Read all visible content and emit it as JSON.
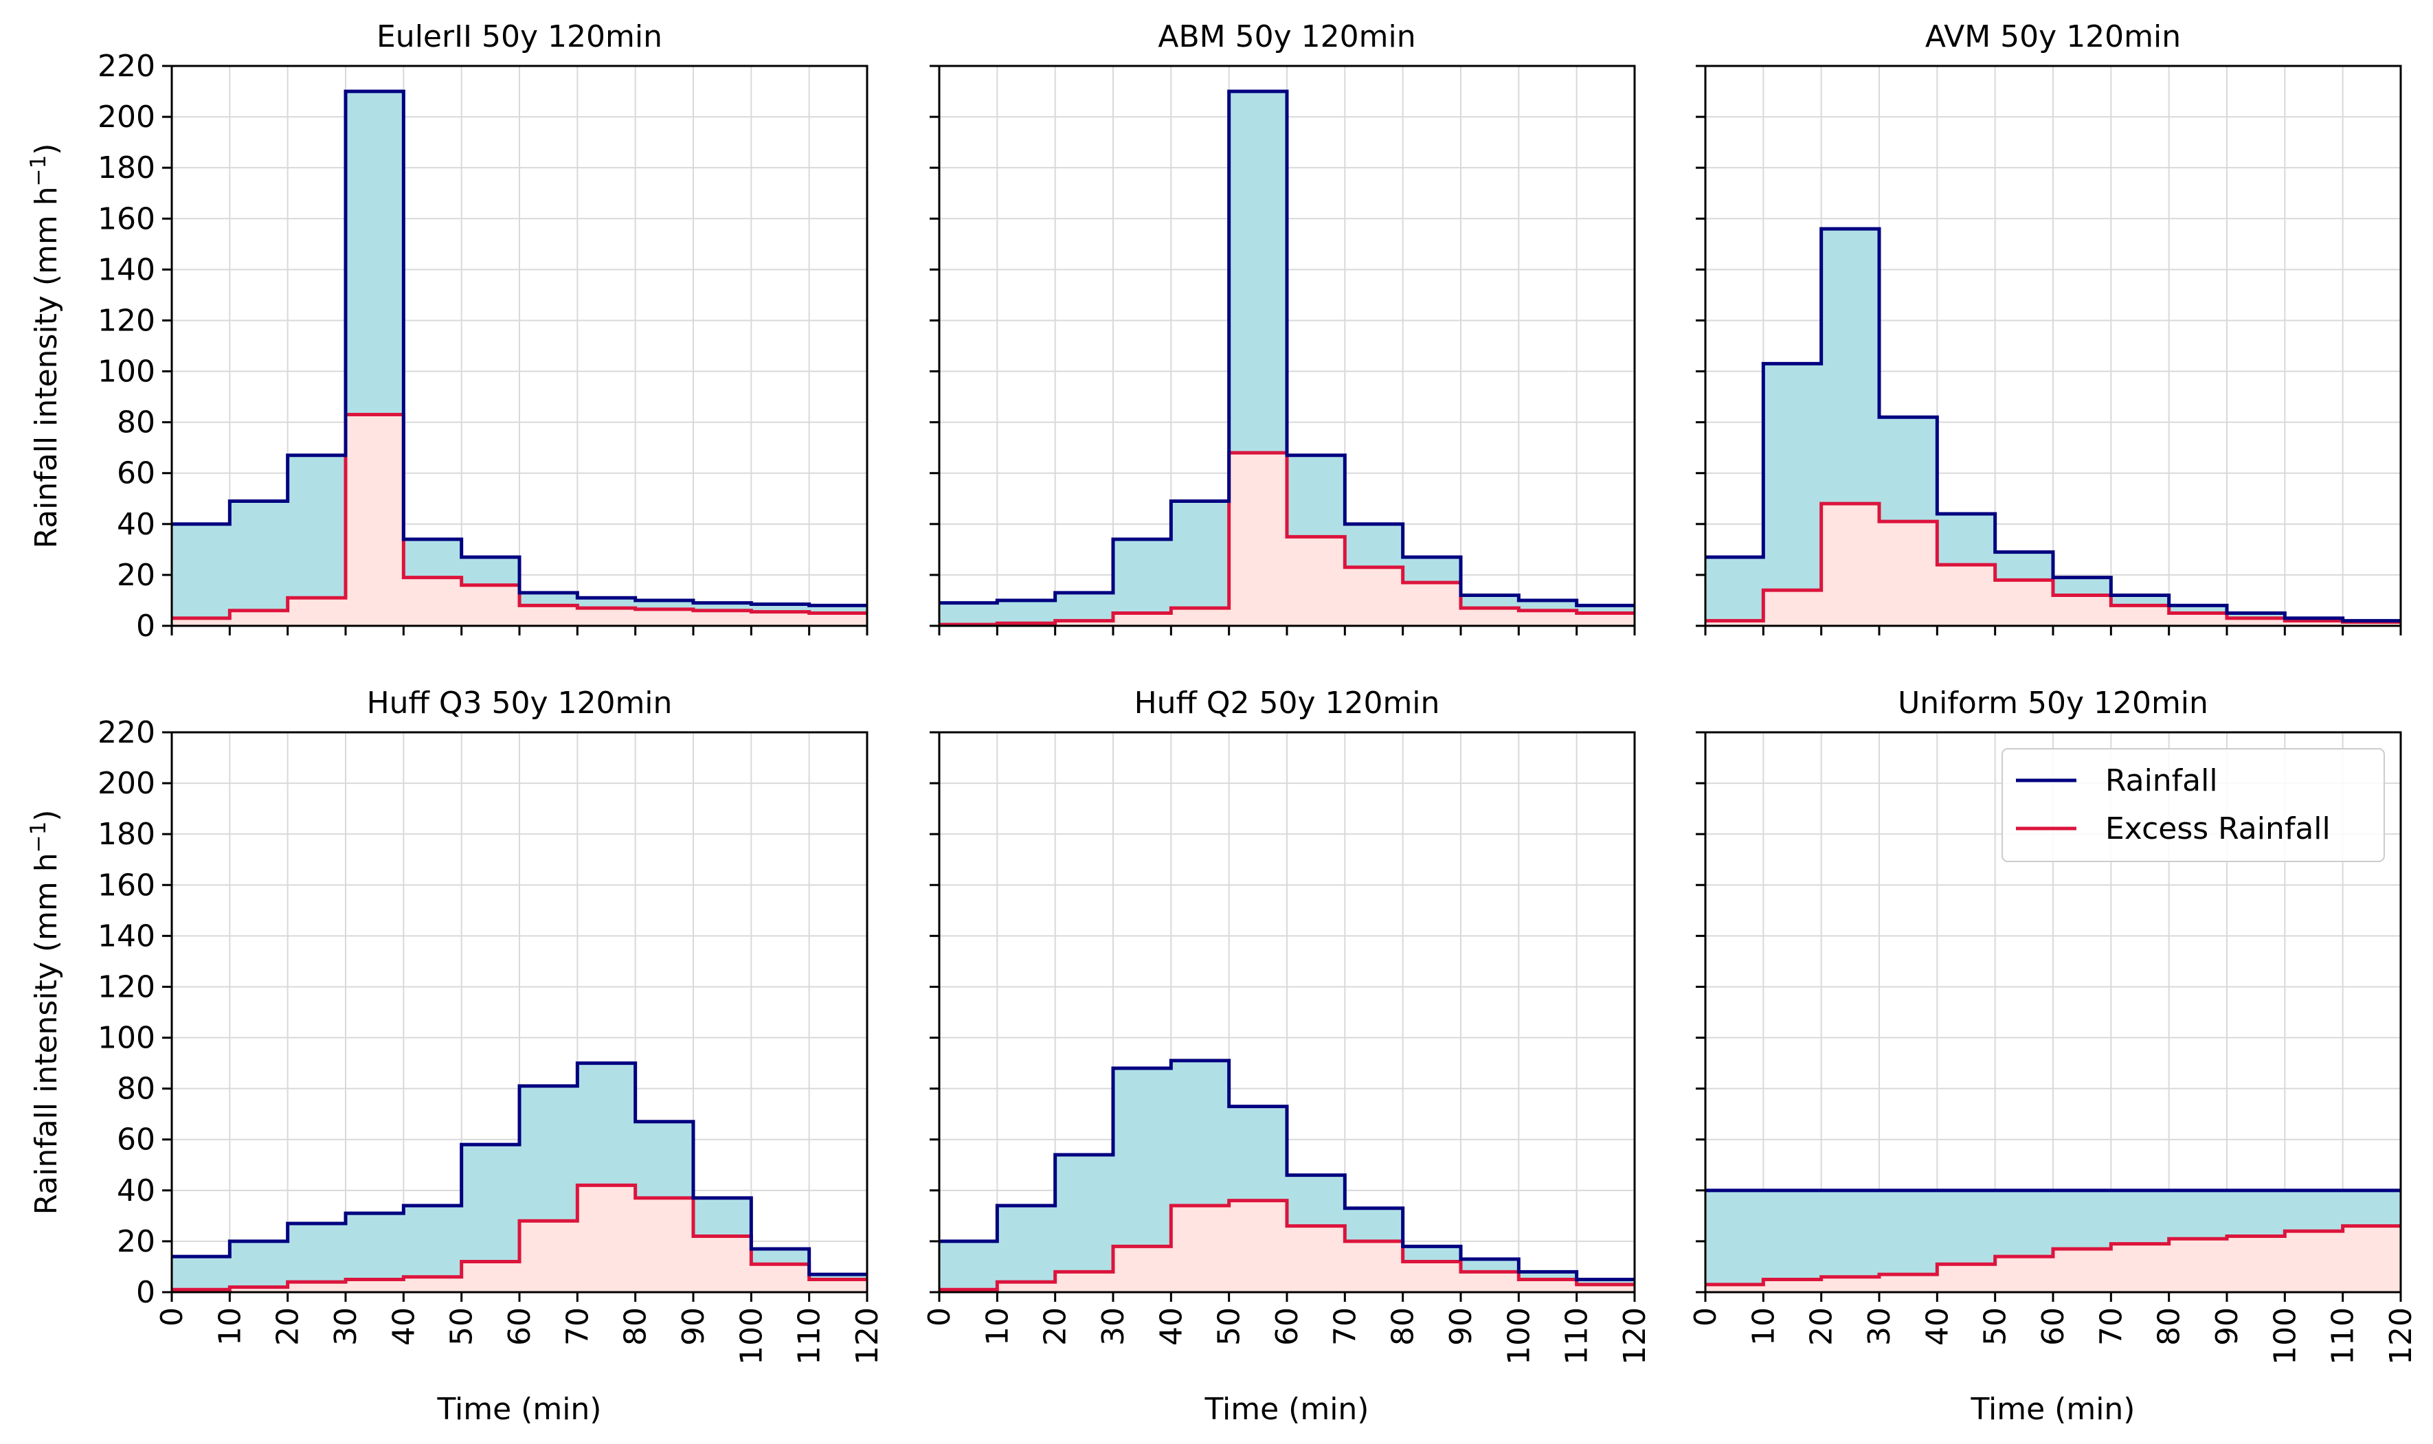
{
  "figure": {
    "ylabel": "Rainfall intensity (mm h",
    "ylabel_sup": "−1",
    "ylabel_end": ")",
    "xlabel": "Time (min)",
    "xlim": [
      0,
      120
    ],
    "ylim": [
      0,
      220
    ],
    "x_ticks": [
      0,
      10,
      20,
      30,
      40,
      50,
      60,
      70,
      80,
      90,
      100,
      110,
      120
    ],
    "y_ticks": [
      0,
      20,
      40,
      60,
      80,
      100,
      120,
      140,
      160,
      180,
      200,
      220
    ],
    "colors": {
      "rainfall_line": "#000080",
      "rainfall_fill": "#b0e0e6",
      "excess_line": "#dc143c",
      "excess_fill": "#ffe4e1",
      "grid": "#d9d9d9"
    }
  },
  "legend": {
    "placement": "top-right",
    "entries": [
      {
        "label": "Rainfall",
        "color": "#000080"
      },
      {
        "label": "Excess Rainfall",
        "color": "#dc143c"
      }
    ]
  },
  "chart_data": [
    {
      "type": "area",
      "title": "EulerII 50y 120min",
      "xlabel": "",
      "ylabel": "Rainfall intensity (mm h−1)",
      "bin_edges": [
        0,
        10,
        20,
        30,
        40,
        50,
        60,
        70,
        80,
        90,
        100,
        110,
        120
      ],
      "series": [
        {
          "name": "Rainfall",
          "values": [
            40,
            49,
            67,
            210,
            34,
            27,
            13,
            11,
            10,
            9,
            8.5,
            8
          ]
        },
        {
          "name": "Excess Rainfall",
          "values": [
            3,
            6,
            11,
            83,
            19,
            16,
            8,
            7,
            6.5,
            6,
            5.5,
            5
          ]
        }
      ]
    },
    {
      "type": "area",
      "title": "ABM 50y 120min",
      "xlabel": "",
      "ylabel": "",
      "bin_edges": [
        0,
        10,
        20,
        30,
        40,
        50,
        60,
        70,
        80,
        90,
        100,
        110,
        120
      ],
      "series": [
        {
          "name": "Rainfall",
          "values": [
            9,
            10,
            13,
            34,
            49,
            210,
            67,
            40,
            27,
            12,
            10,
            8
          ]
        },
        {
          "name": "Excess Rainfall",
          "values": [
            0.5,
            1,
            2,
            5,
            7,
            68,
            35,
            23,
            17,
            7,
            6,
            5
          ]
        }
      ]
    },
    {
      "type": "area",
      "title": "AVM 50y 120min",
      "xlabel": "",
      "ylabel": "",
      "bin_edges": [
        0,
        10,
        20,
        30,
        40,
        50,
        60,
        70,
        80,
        90,
        100,
        110,
        120
      ],
      "series": [
        {
          "name": "Rainfall",
          "values": [
            27,
            103,
            156,
            82,
            44,
            29,
            19,
            12,
            8,
            5,
            3,
            2
          ]
        },
        {
          "name": "Excess Rainfall",
          "values": [
            2,
            14,
            48,
            41,
            24,
            18,
            12,
            8,
            5,
            3,
            2,
            1.5
          ]
        }
      ]
    },
    {
      "type": "area",
      "title": "Huff Q3 50y 120min",
      "xlabel": "Time (min)",
      "ylabel": "Rainfall intensity (mm h−1)",
      "bin_edges": [
        0,
        10,
        20,
        30,
        40,
        50,
        60,
        70,
        80,
        90,
        100,
        110,
        120
      ],
      "series": [
        {
          "name": "Rainfall",
          "values": [
            14,
            20,
            27,
            31,
            34,
            58,
            81,
            90,
            67,
            37,
            17,
            7
          ]
        },
        {
          "name": "Excess Rainfall",
          "values": [
            1,
            2,
            4,
            5,
            6,
            12,
            28,
            42,
            37,
            22,
            11,
            5
          ]
        }
      ]
    },
    {
      "type": "area",
      "title": "Huff Q2 50y 120min",
      "xlabel": "Time (min)",
      "ylabel": "",
      "bin_edges": [
        0,
        10,
        20,
        30,
        40,
        50,
        60,
        70,
        80,
        90,
        100,
        110,
        120
      ],
      "series": [
        {
          "name": "Rainfall",
          "values": [
            20,
            34,
            54,
            88,
            91,
            73,
            46,
            33,
            18,
            13,
            8,
            5
          ]
        },
        {
          "name": "Excess Rainfall",
          "values": [
            1,
            4,
            8,
            18,
            34,
            36,
            26,
            20,
            12,
            8,
            5,
            3
          ]
        }
      ]
    },
    {
      "type": "area",
      "title": "Uniform 50y 120min",
      "xlabel": "Time (min)",
      "ylabel": "",
      "bin_edges": [
        0,
        10,
        20,
        30,
        40,
        50,
        60,
        70,
        80,
        90,
        100,
        110,
        120
      ],
      "series": [
        {
          "name": "Rainfall",
          "values": [
            40,
            40,
            40,
            40,
            40,
            40,
            40,
            40,
            40,
            40,
            40,
            40
          ]
        },
        {
          "name": "Excess Rainfall",
          "values": [
            3,
            5,
            6,
            7,
            11,
            14,
            17,
            19,
            21,
            22,
            24,
            26
          ]
        }
      ]
    }
  ]
}
